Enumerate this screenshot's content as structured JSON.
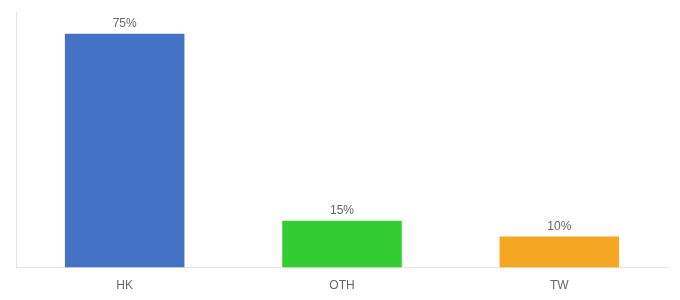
{
  "chart_data": {
    "type": "bar",
    "categories": [
      "HK",
      "OTH",
      "TW"
    ],
    "values": [
      75,
      15,
      10
    ],
    "value_labels": [
      "75%",
      "15%",
      "10%"
    ],
    "colors": [
      "#4472c4",
      "#33cc33",
      "#f5a623"
    ],
    "ylim": [
      0,
      82
    ],
    "grid": false,
    "data_labels": true,
    "tick_labels": "x"
  }
}
